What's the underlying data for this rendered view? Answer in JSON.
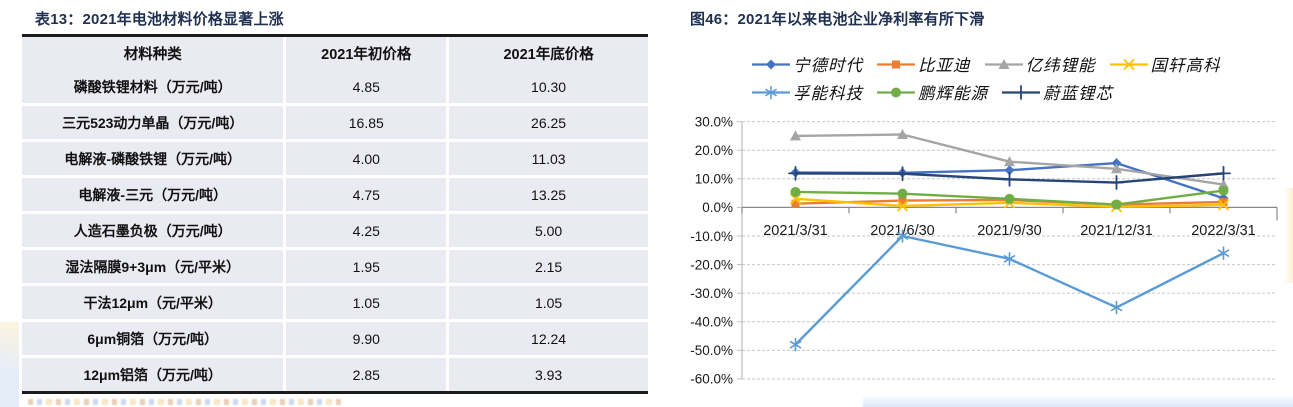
{
  "style": {
    "title_color": "#1F3050",
    "table_row_bg": "#EAEAF2",
    "table_border_color": "#1B1B1B",
    "gridline_color": "#C6C6C6",
    "axis_line_color": "#BFBFBF",
    "zero_axis_color": "#8A8A8A",
    "axis_text_color": "#1A1A1A"
  },
  "chart_data": [
    {
      "type": "table",
      "title": "表13：2021年电池材料价格显著上涨",
      "columns": [
        "材料种类",
        "2021年初价格",
        "2021年底价格"
      ],
      "rows": [
        [
          "磷酸铁锂材料（万元/吨）",
          "4.85",
          "10.30"
        ],
        [
          "三元523动力单晶（万元/吨）",
          "16.85",
          "26.25"
        ],
        [
          "电解液-磷酸铁锂（万元/吨）",
          "4.00",
          "11.03"
        ],
        [
          "电解液-三元（万元/吨）",
          "4.75",
          "13.25"
        ],
        [
          "人造石墨负极（万元/吨）",
          "4.25",
          "5.00"
        ],
        [
          "湿法隔膜9+3μm（元/平米）",
          "1.95",
          "2.15"
        ],
        [
          "干法12μm（元/平米）",
          "1.05",
          "1.05"
        ],
        [
          "6μm铜箔（万元/吨）",
          "9.90",
          "12.24"
        ],
        [
          "12μm铝箔（万元/吨）",
          "2.85",
          "3.93"
        ]
      ]
    },
    {
      "type": "line",
      "title": "图46：2021年以来电池企业净利率有所下滑",
      "categories": [
        "2021/3/31",
        "2021/6/30",
        "2021/9/30",
        "2021/12/31",
        "2022/3/31"
      ],
      "series": [
        {
          "name": "宁德时代",
          "color": "#4472C4",
          "marker": "diamond",
          "values": [
            12.2,
            12.1,
            13.0,
            15.5,
            3.2
          ]
        },
        {
          "name": "比亚迪",
          "color": "#ED7D31",
          "marker": "square",
          "values": [
            1.3,
            2.4,
            2.6,
            1.0,
            1.9
          ]
        },
        {
          "name": "亿纬锂能",
          "color": "#A5A5A5",
          "marker": "triangle",
          "values": [
            25.0,
            25.5,
            16.0,
            13.5,
            8.0
          ]
        },
        {
          "name": "国轩高科",
          "color": "#FFC000",
          "marker": "x",
          "values": [
            3.0,
            0.5,
            1.6,
            0.2,
            0.9
          ]
        },
        {
          "name": "孚能科技",
          "color": "#5B9BD5",
          "marker": "asterisk",
          "values": [
            -48.0,
            -10.0,
            -18.0,
            -35.0,
            -16.0
          ]
        },
        {
          "name": "鹏辉能源",
          "color": "#70AD47",
          "marker": "circle",
          "values": [
            5.4,
            4.8,
            3.0,
            1.0,
            5.9
          ]
        },
        {
          "name": "蔚蓝锂芯",
          "color": "#264478",
          "marker": "plus",
          "values": [
            11.9,
            11.8,
            9.8,
            8.7,
            11.9
          ]
        }
      ],
      "ylim": [
        -60,
        30
      ],
      "ytick_step": 10,
      "ytick_labels": [
        "30.0%",
        "20.0%",
        "10.0%",
        "0.0%",
        "-10.0%",
        "-20.0%",
        "-30.0%",
        "-40.0%",
        "-50.0%",
        "-60.0%"
      ],
      "yformat": "0.0%",
      "grid": "dashed-horizontal",
      "legend_position": "top"
    }
  ]
}
